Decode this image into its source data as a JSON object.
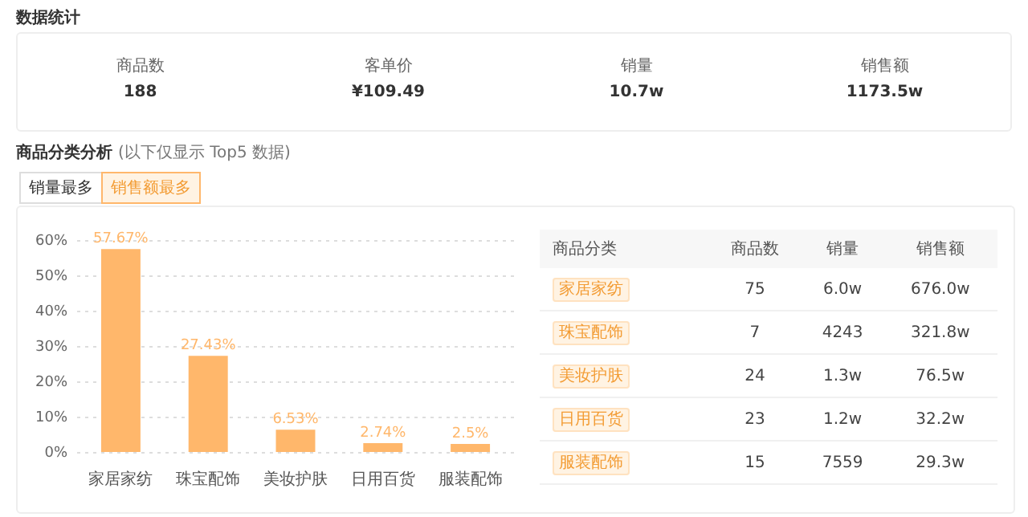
{
  "chart_data": [
    {
      "type": "other",
      "title": "数据统计",
      "annotations": [
        "商品数",
        "188",
        "客单价",
        "¥109.49",
        "销量",
        "10.7w",
        "销售额",
        "1173.5w"
      ]
    },
    {
      "type": "bar",
      "title": "商品分类分析",
      "subtitle": "(以下仅显示 Top5 数据)",
      "annotations": [
        "销量最多",
        "销售额最多"
      ],
      "categories": [
        "家居家纺",
        "珠宝配饰",
        "美妆护肤",
        "日用百货",
        "服装配饰"
      ],
      "values": [
        57.67,
        27.43,
        6.53,
        2.74,
        2.5
      ],
      "value_labels": [
        "57.67%",
        "27.43%",
        "6.53%",
        "2.74%",
        "2.5%"
      ],
      "color": "#ffb76b",
      "ylim": [
        0,
        60
      ],
      "yticks": [
        {
          "value": 0,
          "label": "0%"
        },
        {
          "value": 10,
          "label": "10%"
        },
        {
          "value": 20,
          "label": "20%"
        },
        {
          "value": 30,
          "label": "30%"
        },
        {
          "value": 40,
          "label": "40%"
        },
        {
          "value": 50,
          "label": "50%"
        },
        {
          "value": 60,
          "label": "60%"
        }
      ],
      "grid": "y"
    },
    {
      "type": "other",
      "categories": [
        "商品分类",
        "商品数",
        "销量",
        "销售额"
      ],
      "annotations": [
        "家居家纺",
        "75",
        "6.0w",
        "676.0w",
        "珠宝配饰",
        "7",
        "4243",
        "321.8w",
        "美妆护肤",
        "24",
        "1.3w",
        "76.5w",
        "日用百货",
        "23",
        "1.2w",
        "32.2w",
        "服装配饰",
        "15",
        "7559",
        "29.3w"
      ]
    }
  ]
}
